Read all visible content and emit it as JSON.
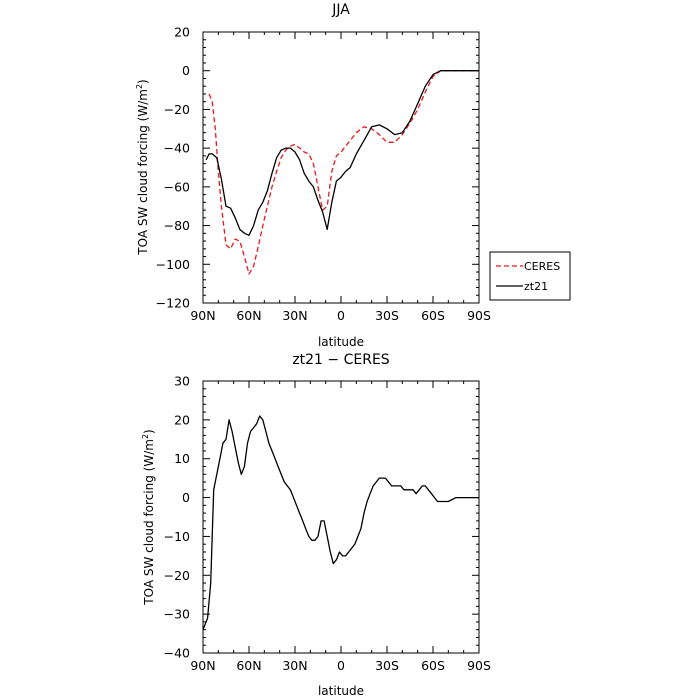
{
  "chart_data": [
    {
      "type": "line",
      "title": "JJA",
      "xlabel": "latitude",
      "ylabel": "TOA SW cloud forcing (W/m²)",
      "ylabel_main": "TOA SW cloud forcing (W/m",
      "ylabel_sup": "2",
      "ylabel_end": ")",
      "xlim": [
        90,
        -90
      ],
      "ylim": [
        -120,
        20
      ],
      "xticks": [
        90,
        60,
        30,
        0,
        -30,
        -60,
        -90
      ],
      "xticklabels": [
        "90N",
        "60N",
        "30N",
        "0",
        "30S",
        "60S",
        "90S"
      ],
      "yticks": [
        -120,
        -100,
        -80,
        -60,
        -40,
        -20,
        0,
        20
      ],
      "yticklabels": [
        "−120",
        "−100",
        "−80",
        "−60",
        "−40",
        "−20",
        "0",
        "20"
      ],
      "legend": {
        "position": "right",
        "labels": [
          "CERES",
          "zt21"
        ]
      },
      "series": [
        {
          "name": "CERES",
          "color": "#e41a1c",
          "dash": "dashed",
          "x": [
            86,
            84,
            82,
            80,
            78,
            75,
            72,
            69,
            66,
            63,
            60,
            57,
            54,
            51,
            48,
            45,
            42,
            39,
            36,
            33,
            30,
            27,
            24,
            21,
            18,
            15,
            12,
            9,
            6,
            3,
            0,
            -3,
            -6,
            -10,
            -15,
            -20,
            -25,
            -30,
            -35,
            -40,
            -45,
            -50,
            -55,
            -60,
            -65,
            -70,
            -75,
            -80,
            -85,
            -90
          ],
          "y": [
            -12,
            -16,
            -30,
            -52,
            -70,
            -90,
            -92,
            -87,
            -88,
            -96,
            -105,
            -101,
            -91,
            -80,
            -70,
            -60,
            -52,
            -45,
            -41,
            -39,
            -38,
            -40,
            -42,
            -43,
            -48,
            -60,
            -72,
            -70,
            -52,
            -44,
            -42,
            -39,
            -36,
            -32,
            -29,
            -30,
            -33,
            -37,
            -37,
            -33,
            -27,
            -20,
            -11,
            -3,
            0,
            0,
            0,
            0,
            0,
            0
          ]
        },
        {
          "name": "zt21",
          "color": "#000000",
          "dash": "solid",
          "x": [
            88,
            86,
            84,
            81,
            78,
            75,
            72,
            69,
            66,
            63,
            60,
            57,
            54,
            51,
            48,
            45,
            42,
            39,
            36,
            33,
            30,
            27,
            24,
            21,
            18,
            15,
            12,
            9,
            6,
            3,
            0,
            -3,
            -6,
            -10,
            -15,
            -20,
            -25,
            -30,
            -35,
            -40,
            -45,
            -50,
            -55,
            -60,
            -65,
            -70,
            -75,
            -80,
            -85,
            -90
          ],
          "y": [
            -46,
            -43,
            -43,
            -45,
            -56,
            -70,
            -71,
            -76,
            -82,
            -84,
            -85,
            -80,
            -72,
            -68,
            -62,
            -53,
            -45,
            -41,
            -40,
            -40,
            -42,
            -46,
            -53,
            -57,
            -60,
            -67,
            -73,
            -82,
            -68,
            -57,
            -55,
            -52,
            -50,
            -43,
            -36,
            -29,
            -28,
            -30,
            -33,
            -32,
            -26,
            -17,
            -8,
            -2,
            0,
            0,
            0,
            0,
            0,
            0
          ]
        }
      ]
    },
    {
      "type": "line",
      "title": "zt21 − CERES",
      "xlabel": "latitude",
      "ylabel": "TOA SW cloud forcing (W/m²)",
      "ylabel_main": "TOA SW cloud forcing (W/m",
      "ylabel_sup": "2",
      "ylabel_end": ")",
      "xlim": [
        90,
        -90
      ],
      "ylim": [
        -40,
        30
      ],
      "xticks": [
        90,
        60,
        30,
        0,
        -30,
        -60,
        -90
      ],
      "xticklabels": [
        "90N",
        "60N",
        "30N",
        "0",
        "30S",
        "60S",
        "90S"
      ],
      "yticks": [
        -40,
        -30,
        -20,
        -10,
        0,
        10,
        20,
        30
      ],
      "yticklabels": [
        "−40",
        "−30",
        "−20",
        "−10",
        "0",
        "10",
        "20",
        "30"
      ],
      "series": [
        {
          "color": "#000000",
          "dash": "solid",
          "x": [
            90,
            87,
            85,
            83,
            81,
            79,
            77,
            75,
            73,
            71,
            69,
            67,
            65,
            63,
            61,
            59,
            57,
            55,
            53,
            51,
            49,
            47,
            45,
            43,
            41,
            39,
            37,
            35,
            33,
            31,
            29,
            27,
            25,
            23,
            21,
            19,
            17,
            15,
            13,
            11,
            9,
            7,
            5,
            3,
            1,
            -1,
            -3,
            -5,
            -7,
            -9,
            -11,
            -13,
            -15,
            -17,
            -19,
            -21,
            -23,
            -25,
            -27,
            -29,
            -31,
            -33,
            -35,
            -37,
            -39,
            -41,
            -43,
            -45,
            -47,
            -49,
            -51,
            -53,
            -55,
            -57,
            -59,
            -61,
            -63,
            -65,
            -67,
            -70,
            -75,
            -80,
            -85,
            -90
          ],
          "y": [
            -34,
            -31,
            -22,
            2,
            6,
            10,
            14,
            15,
            20,
            17,
            13,
            9,
            6,
            8,
            14,
            17,
            18,
            19,
            21,
            20,
            17,
            14,
            12,
            10,
            8,
            6,
            4,
            3,
            2,
            0,
            -2,
            -4,
            -6,
            -8,
            -10,
            -11,
            -11,
            -10,
            -6,
            -6,
            -10,
            -14,
            -17,
            -16,
            -14,
            -15,
            -15,
            -14,
            -13,
            -12,
            -10,
            -8,
            -4,
            -1,
            1,
            3,
            4,
            5,
            5,
            5,
            4,
            3,
            3,
            3,
            3,
            2,
            2,
            2,
            2,
            1,
            2,
            3,
            3,
            2,
            1,
            0,
            -1,
            -1,
            -1,
            -1,
            0,
            0,
            0,
            0
          ]
        }
      ]
    }
  ]
}
